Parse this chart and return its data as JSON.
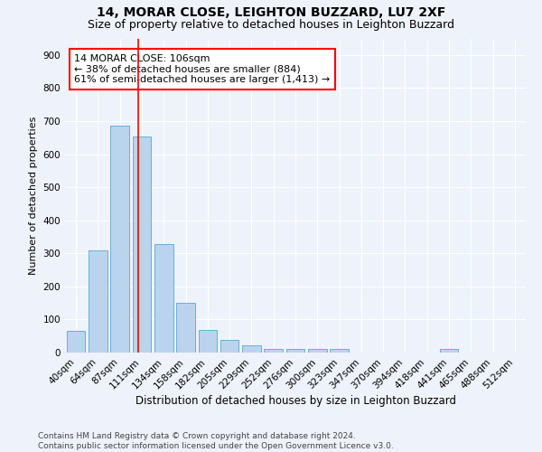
{
  "title1": "14, MORAR CLOSE, LEIGHTON BUZZARD, LU7 2XF",
  "title2": "Size of property relative to detached houses in Leighton Buzzard",
  "xlabel": "Distribution of detached houses by size in Leighton Buzzard",
  "ylabel": "Number of detached properties",
  "bar_labels": [
    "40sqm",
    "64sqm",
    "87sqm",
    "111sqm",
    "134sqm",
    "158sqm",
    "182sqm",
    "205sqm",
    "229sqm",
    "252sqm",
    "276sqm",
    "300sqm",
    "323sqm",
    "347sqm",
    "370sqm",
    "394sqm",
    "418sqm",
    "441sqm",
    "465sqm",
    "488sqm",
    "512sqm"
  ],
  "bar_values": [
    65,
    310,
    685,
    653,
    328,
    150,
    68,
    37,
    22,
    12,
    12,
    12,
    10,
    0,
    0,
    0,
    0,
    12,
    0,
    0,
    0
  ],
  "bar_color": "#bad4ed",
  "bar_edge_color": "#6aaed6",
  "vline_color": "red",
  "annotation_text": "14 MORAR CLOSE: 106sqm\n← 38% of detached houses are smaller (884)\n61% of semi-detached houses are larger (1,413) →",
  "annotation_box_color": "white",
  "annotation_box_edgecolor": "red",
  "ylim": [
    0,
    950
  ],
  "yticks": [
    0,
    100,
    200,
    300,
    400,
    500,
    600,
    700,
    800,
    900
  ],
  "background_color": "#eef2fa",
  "grid_color": "white",
  "footer": "Contains HM Land Registry data © Crown copyright and database right 2024.\nContains public sector information licensed under the Open Government Licence v3.0.",
  "title1_fontsize": 10,
  "title2_fontsize": 9,
  "xlabel_fontsize": 8.5,
  "ylabel_fontsize": 8,
  "tick_fontsize": 7.5,
  "annotation_fontsize": 8,
  "footer_fontsize": 6.5
}
